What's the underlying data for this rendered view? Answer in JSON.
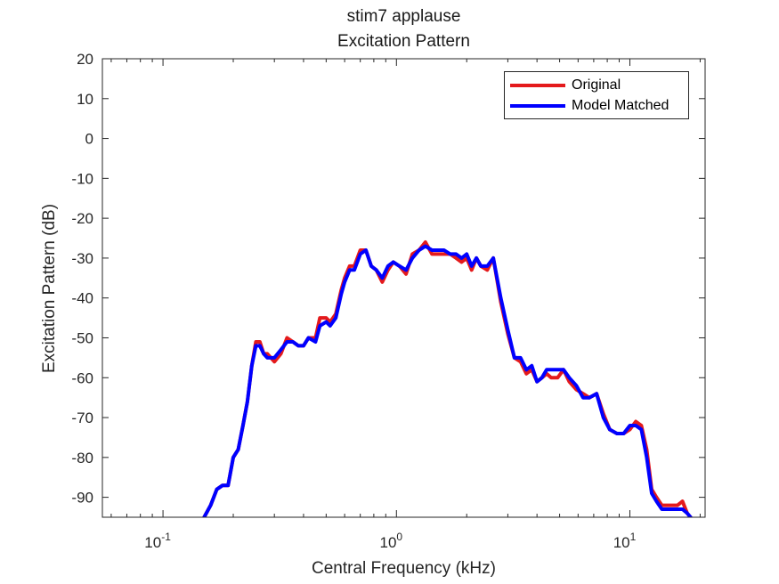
{
  "colors": {
    "original": "#e41a1c",
    "model_matched": "#0000ff",
    "axis": "#262626"
  },
  "chart_data": {
    "type": "line",
    "title": [
      "stim7 applause",
      "Excitation Pattern"
    ],
    "xlabel": "Central Frequency (kHz)",
    "ylabel": "Excitation Pattern (dB)",
    "xscale": "log",
    "xlim": [
      0.055,
      21
    ],
    "ylim": [
      -95,
      20
    ],
    "yticks": [
      20,
      10,
      0,
      -10,
      -20,
      -30,
      -40,
      -50,
      -60,
      -70,
      -80,
      -90
    ],
    "ytick_labels": [
      "20",
      "10",
      "0",
      "-10",
      "-20",
      "-30",
      "-40",
      "-50",
      "-60",
      "-70",
      "-80",
      "-90"
    ],
    "xticks": [
      0.1,
      1,
      10
    ],
    "xtick_labels": [
      {
        "base": "10",
        "exp": "-1"
      },
      {
        "base": "10",
        "exp": "0"
      },
      {
        "base": "10",
        "exp": "1"
      }
    ],
    "grid": false,
    "legend_position": "top-right",
    "series": [
      {
        "name": "Original",
        "color": "#e41a1c",
        "x": [
          0.15,
          0.16,
          0.17,
          0.18,
          0.19,
          0.2,
          0.21,
          0.22,
          0.23,
          0.24,
          0.25,
          0.26,
          0.27,
          0.28,
          0.3,
          0.32,
          0.34,
          0.36,
          0.38,
          0.4,
          0.42,
          0.45,
          0.47,
          0.5,
          0.52,
          0.55,
          0.58,
          0.6,
          0.63,
          0.66,
          0.7,
          0.74,
          0.78,
          0.82,
          0.87,
          0.92,
          0.97,
          1.03,
          1.1,
          1.17,
          1.25,
          1.33,
          1.42,
          1.5,
          1.6,
          1.7,
          1.8,
          1.9,
          2.0,
          2.1,
          2.2,
          2.3,
          2.45,
          2.6,
          2.8,
          3.0,
          3.2,
          3.4,
          3.6,
          3.8,
          4.0,
          4.2,
          4.4,
          4.6,
          4.9,
          5.2,
          5.5,
          5.9,
          6.3,
          6.7,
          7.2,
          7.7,
          8.2,
          8.8,
          9.4,
          10.0,
          10.6,
          11.2,
          11.8,
          12.4,
          13.0,
          13.7,
          14.4,
          15.2,
          16.0,
          16.8,
          17.6,
          18.2
        ],
        "y": [
          -95,
          -92,
          -88,
          -87,
          -87,
          -80,
          -78,
          -72,
          -66,
          -57,
          -51,
          -51,
          -54,
          -54,
          -56,
          -54,
          -50,
          -51,
          -52,
          -52,
          -50,
          -50,
          -45,
          -45,
          -46,
          -44,
          -38,
          -35,
          -32,
          -32,
          -28,
          -28,
          -32,
          -33,
          -36,
          -33,
          -31,
          -32,
          -34,
          -29,
          -28,
          -26,
          -29,
          -29,
          -29,
          -29,
          -30,
          -31,
          -30,
          -33,
          -30,
          -32,
          -33,
          -30,
          -41,
          -49,
          -55,
          -56,
          -59,
          -58,
          -61,
          -60,
          -59,
          -60,
          -60,
          -58,
          -61,
          -63,
          -64,
          -65,
          -64,
          -69,
          -73,
          -74,
          -74,
          -73,
          -71,
          -72,
          -78,
          -88,
          -90,
          -92,
          -92,
          -92,
          -92,
          -91,
          -94,
          -95
        ]
      },
      {
        "name": "Model Matched",
        "color": "#0000ff",
        "x": [
          0.15,
          0.16,
          0.17,
          0.18,
          0.19,
          0.2,
          0.21,
          0.22,
          0.23,
          0.24,
          0.25,
          0.26,
          0.27,
          0.28,
          0.3,
          0.32,
          0.34,
          0.36,
          0.38,
          0.4,
          0.42,
          0.45,
          0.47,
          0.5,
          0.52,
          0.55,
          0.58,
          0.6,
          0.63,
          0.66,
          0.7,
          0.74,
          0.78,
          0.82,
          0.87,
          0.92,
          0.97,
          1.03,
          1.1,
          1.17,
          1.25,
          1.33,
          1.42,
          1.5,
          1.6,
          1.7,
          1.8,
          1.9,
          2.0,
          2.1,
          2.2,
          2.3,
          2.45,
          2.6,
          2.8,
          3.0,
          3.2,
          3.4,
          3.6,
          3.8,
          4.0,
          4.2,
          4.4,
          4.6,
          4.9,
          5.2,
          5.5,
          5.9,
          6.3,
          6.7,
          7.2,
          7.7,
          8.2,
          8.8,
          9.4,
          10.0,
          10.6,
          11.2,
          11.8,
          12.4,
          13.0,
          13.7,
          14.4,
          15.2,
          16.0,
          16.8,
          17.6,
          18.2
        ],
        "y": [
          -95,
          -92,
          -88,
          -87,
          -87,
          -80,
          -78,
          -72,
          -66,
          -57,
          -52,
          -52,
          -54,
          -55,
          -55,
          -53,
          -51,
          -51,
          -52,
          -52,
          -50,
          -51,
          -47,
          -46,
          -47,
          -45,
          -39,
          -36,
          -33,
          -33,
          -29,
          -28,
          -32,
          -33,
          -35,
          -32,
          -31,
          -32,
          -33,
          -30,
          -28,
          -27,
          -28,
          -28,
          -28,
          -29,
          -29,
          -30,
          -29,
          -32,
          -30,
          -32,
          -32,
          -30,
          -40,
          -48,
          -55,
          -55,
          -58,
          -57,
          -61,
          -60,
          -58,
          -58,
          -58,
          -58,
          -60,
          -62,
          -65,
          -65,
          -64,
          -70,
          -73,
          -74,
          -74,
          -72,
          -72,
          -73,
          -80,
          -89,
          -91,
          -93,
          -93,
          -93,
          -93,
          -93,
          -94,
          -95
        ]
      }
    ]
  }
}
